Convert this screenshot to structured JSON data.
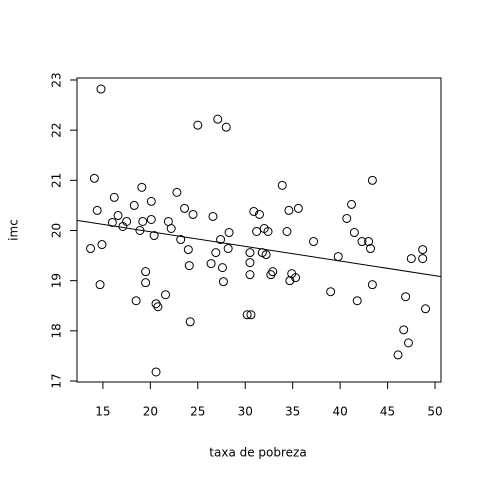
{
  "chart_data": {
    "type": "scatter",
    "x_label": "taxa de pobreza",
    "y_label": "imc",
    "x": [
      13.7,
      14.1,
      14.4,
      14.8,
      14.9,
      14.7,
      16.0,
      16.2,
      16.6,
      17.1,
      17.5,
      18.3,
      18.5,
      18.9,
      19.1,
      19.2,
      19.5,
      19.5,
      20.1,
      20.1,
      20.4,
      20.6,
      20.8,
      20.6,
      21.6,
      21.9,
      22.2,
      22.8,
      23.2,
      23.6,
      24.0,
      24.1,
      24.2,
      24.5,
      25.0,
      26.4,
      26.6,
      26.9,
      27.1,
      27.4,
      27.6,
      27.7,
      28.0,
      28.2,
      28.3,
      30.2,
      30.5,
      30.5,
      30.5,
      30.6,
      30.9,
      31.2,
      31.5,
      31.8,
      32.0,
      32.2,
      32.4,
      32.7,
      32.9,
      33.9,
      34.4,
      34.6,
      34.7,
      34.9,
      35.3,
      35.6,
      37.2,
      39.0,
      39.8,
      40.7,
      41.2,
      41.5,
      41.8,
      42.3,
      43.0,
      43.2,
      43.4,
      43.4,
      46.1,
      46.7,
      46.9,
      47.2,
      47.5,
      48.7,
      48.7,
      49.0
    ],
    "values": [
      19.64,
      21.04,
      20.4,
      22.82,
      19.72,
      18.92,
      20.16,
      20.66,
      20.3,
      20.08,
      20.18,
      20.5,
      18.6,
      20.0,
      20.86,
      20.18,
      19.18,
      18.96,
      20.58,
      20.22,
      19.9,
      18.54,
      18.48,
      17.18,
      18.72,
      20.18,
      20.04,
      20.76,
      19.82,
      20.44,
      19.62,
      19.3,
      18.18,
      20.32,
      22.1,
      19.34,
      20.28,
      19.56,
      22.22,
      19.82,
      19.26,
      18.98,
      22.06,
      19.64,
      19.96,
      18.32,
      19.56,
      19.36,
      19.12,
      18.32,
      20.38,
      19.98,
      20.32,
      19.56,
      20.04,
      19.52,
      19.98,
      19.12,
      19.18,
      20.9,
      19.98,
      20.4,
      19.0,
      19.14,
      19.06,
      20.44,
      19.78,
      18.78,
      19.48,
      20.24,
      20.52,
      19.96,
      18.6,
      19.78,
      19.78,
      19.64,
      21.0,
      18.92,
      17.52,
      18.02,
      18.68,
      17.76,
      19.44,
      19.44,
      19.62,
      18.44
    ],
    "color": "#000000",
    "regression": {
      "intercept": 20.56,
      "slope": -0.0292
    },
    "xlim": [
      12.27,
      50.63
    ],
    "ylim": [
      16.98,
      23.04
    ],
    "xticks": [
      15,
      20,
      25,
      30,
      35,
      40,
      45,
      50
    ],
    "yticks": [
      17,
      18,
      19,
      20,
      21,
      22,
      23
    ]
  }
}
